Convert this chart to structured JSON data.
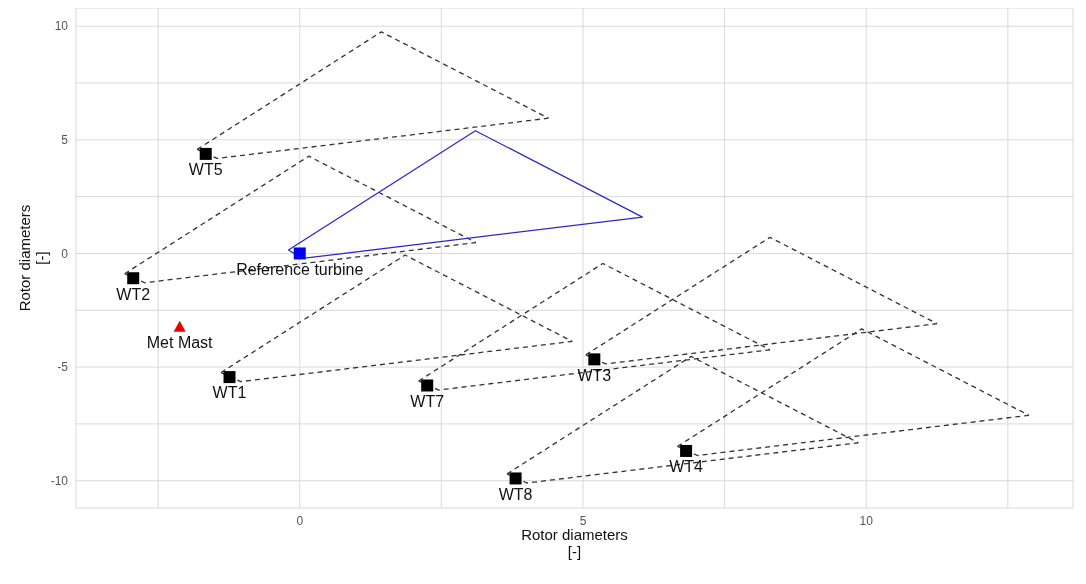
{
  "chart_data": {
    "type": "scatter",
    "xlabel": "Rotor diameters\n[-]",
    "ylabel": "Rotor diameters\n[-]",
    "xlim": [
      -3.95,
      13.65
    ],
    "ylim": [
      -11.2,
      10.8
    ],
    "xticks": [
      {
        "value": -2.5,
        "label": null
      },
      0,
      {
        "value": 2.5,
        "label": null
      },
      5,
      {
        "value": 7.5,
        "label": null
      },
      10,
      {
        "value": 12.5,
        "label": null
      }
    ],
    "yticks": [
      -10,
      {
        "value": -7.5,
        "label": null
      },
      -5,
      {
        "value": -2.5,
        "label": null
      },
      0,
      {
        "value": 2.5,
        "label": null
      },
      5,
      {
        "value": 7.5,
        "label": null
      },
      10
    ],
    "grid": true,
    "series": [
      {
        "type": "line",
        "color": "#333333",
        "line_style": "dashed",
        "marker": "none",
        "x": [
          -1.81,
          1.44,
          4.39
        ],
        "values": [
          4.58,
          9.75,
          5.95
        ]
      },
      {
        "type": "line",
        "color": "#333333",
        "line_style": "dashed",
        "marker": "none",
        "x": [
          -1.81,
          -1.46,
          4.39
        ],
        "values": [
          4.58,
          4.18,
          5.95
        ]
      },
      {
        "type": "line",
        "color": "#333333",
        "line_style": "dashed",
        "marker": "none",
        "x": [
          -3.09,
          0.16,
          3.11
        ],
        "values": [
          -0.89,
          4.28,
          0.48
        ]
      },
      {
        "type": "line",
        "color": "#333333",
        "line_style": "dashed",
        "marker": "none",
        "x": [
          -3.09,
          -2.74,
          3.11
        ],
        "values": [
          -0.89,
          -1.29,
          0.48
        ]
      },
      {
        "type": "line",
        "color": "#333333",
        "line_style": "dashed",
        "marker": "none",
        "x": [
          -1.39,
          1.86,
          4.81
        ],
        "values": [
          -5.24,
          -0.07,
          -3.87
        ]
      },
      {
        "type": "line",
        "color": "#333333",
        "line_style": "dashed",
        "marker": "none",
        "x": [
          -1.39,
          -1.04,
          4.81
        ],
        "values": [
          -5.24,
          -5.64,
          -3.87
        ]
      },
      {
        "type": "line",
        "color": "#333333",
        "line_style": "dashed",
        "marker": "none",
        "x": [
          2.1,
          5.35,
          8.3
        ],
        "values": [
          -5.61,
          -0.44,
          -4.24
        ]
      },
      {
        "type": "line",
        "color": "#333333",
        "line_style": "dashed",
        "marker": "none",
        "x": [
          2.1,
          2.45,
          8.3
        ],
        "values": [
          -5.61,
          -6.01,
          -4.24
        ]
      },
      {
        "type": "line",
        "color": "#333333",
        "line_style": "dashed",
        "marker": "none",
        "x": [
          3.66,
          6.91,
          9.86
        ],
        "values": [
          -9.7,
          -4.53,
          -8.33
        ]
      },
      {
        "type": "line",
        "color": "#333333",
        "line_style": "dashed",
        "marker": "none",
        "x": [
          3.66,
          4.01,
          9.86
        ],
        "values": [
          -9.7,
          -10.1,
          -8.33
        ]
      },
      {
        "type": "line",
        "color": "#333333",
        "line_style": "dashed",
        "marker": "none",
        "x": [
          5.05,
          8.3,
          11.25
        ],
        "values": [
          -4.46,
          0.71,
          -3.09
        ]
      },
      {
        "type": "line",
        "color": "#333333",
        "line_style": "dashed",
        "marker": "none",
        "x": [
          5.05,
          5.4,
          11.25
        ],
        "values": [
          -4.46,
          -4.86,
          -3.09
        ]
      },
      {
        "type": "line",
        "color": "#333333",
        "line_style": "dashed",
        "marker": "none",
        "x": [
          6.67,
          9.92,
          12.87
        ],
        "values": [
          -8.49,
          -3.32,
          -7.12
        ]
      },
      {
        "type": "line",
        "color": "#333333",
        "line_style": "dashed",
        "marker": "none",
        "x": [
          6.67,
          7.02,
          12.87
        ],
        "values": [
          -8.49,
          -8.89,
          -7.12
        ]
      },
      {
        "type": "line",
        "color": "#2a2acc",
        "line_style": "solid",
        "marker": "none",
        "x": [
          -0.2,
          3.1,
          6.05
        ],
        "values": [
          0.15,
          5.4,
          1.6
        ]
      },
      {
        "type": "line",
        "color": "#2a2acc",
        "line_style": "solid",
        "marker": "none",
        "x": [
          -0.2,
          0.05,
          6.05
        ],
        "values": [
          0.15,
          -0.22,
          1.6
        ]
      },
      {
        "type": "scatter",
        "color": "#000000",
        "marker": "square",
        "x": [
          -1.24,
          -2.94,
          5.2,
          6.82,
          -1.66,
          2.25,
          3.81
        ],
        "values": [
          -5.44,
          -1.09,
          -4.66,
          -8.69,
          4.38,
          -5.81,
          -9.9
        ]
      },
      {
        "type": "scatter",
        "color": "#0000ff",
        "marker": "square",
        "x": [
          0
        ],
        "values": [
          0
        ]
      },
      {
        "type": "scatter",
        "color": "#ee0000",
        "marker": "triangle",
        "x": [
          -2.12
        ],
        "values": [
          -3.23
        ]
      }
    ],
    "annotations": [
      {
        "text": "WT1",
        "x": -1.24,
        "y": -5.44
      },
      {
        "text": "WT2",
        "x": -2.94,
        "y": -1.09
      },
      {
        "text": "WT3",
        "x": 5.2,
        "y": -4.66
      },
      {
        "text": "WT4",
        "x": 6.82,
        "y": -8.69
      },
      {
        "text": "WT5",
        "x": -1.66,
        "y": 4.38
      },
      {
        "text": "WT7",
        "x": 2.25,
        "y": -5.81
      },
      {
        "text": "WT8",
        "x": 3.81,
        "y": -9.9
      },
      {
        "text": "Reference turbine",
        "x": 0,
        "y": 0
      },
      {
        "text": "Met Mast",
        "x": -2.12,
        "y": -3.23
      }
    ]
  }
}
